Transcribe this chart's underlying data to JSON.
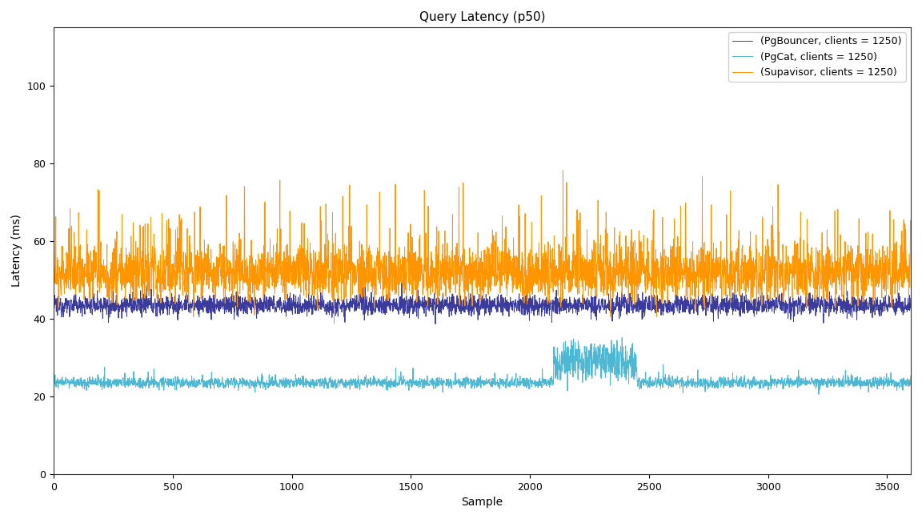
{
  "title": "Query Latency (p50)",
  "xlabel": "Sample",
  "ylabel": "Latency (ms)",
  "ylim": [
    0,
    115
  ],
  "xlim": [
    0,
    3600
  ],
  "yticks": [
    0,
    20,
    40,
    60,
    80,
    100
  ],
  "xticks": [
    0,
    500,
    1000,
    1500,
    2000,
    2500,
    3000,
    3500
  ],
  "n_samples": 3600,
  "series": [
    {
      "label": "(PgBouncer, clients = 1250)",
      "color": "#3b3b9e",
      "base": 43.5,
      "noise": 1.3,
      "spike_prob": 0.004,
      "spike_mag": 3.0,
      "dip_prob": 0.004,
      "dip_mag": 4.5,
      "large_dip_prob": 0.001,
      "large_dip_mag": 5.0
    },
    {
      "label": "(PgCat, clients = 1250)",
      "color": "#4db8d4",
      "base": 23.5,
      "noise": 0.7,
      "spike_prob": 0.012,
      "spike_mag": 3.5,
      "dip_prob": 0.002,
      "dip_mag": 1.5,
      "bump_start": 2100,
      "bump_end": 2450,
      "bump_height": 5.5,
      "bump_noise": 2.5
    },
    {
      "label": "(Supavisor, clients = 1250)",
      "color": "#ff9500",
      "base": 51.5,
      "noise": 3.5,
      "spike_prob": 0.045,
      "spike_mag": 18.0,
      "dip_prob": 0.003,
      "dip_mag": 3.0,
      "extra_spike_prob": 0.07,
      "extra_spike_mag": 8.0
    }
  ],
  "figsize": [
    11.52,
    6.48
  ],
  "dpi": 100,
  "bg_color": "#ffffff",
  "legend_loc": "upper right",
  "linewidth": 0.7
}
